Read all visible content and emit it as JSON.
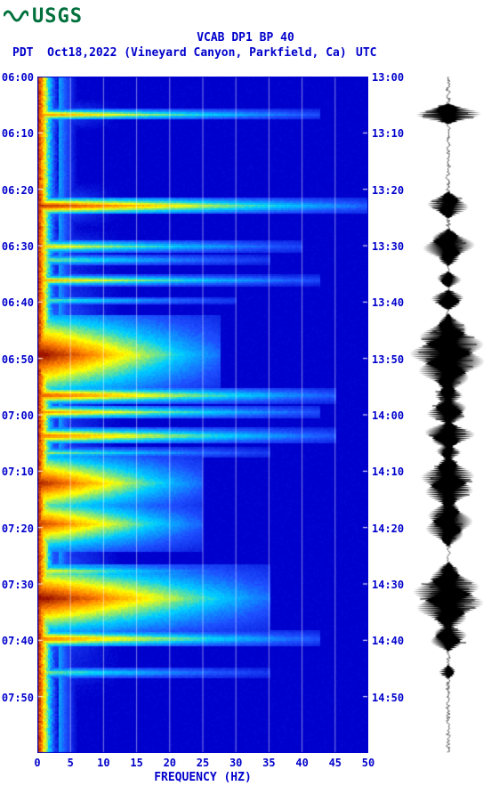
{
  "logo": {
    "text": "USGS"
  },
  "title": "VCAB DP1 BP 40",
  "subtitle_left": "PDT",
  "subtitle_date": "Oct18,2022 (Vineyard Canyon, Parkfield, Ca)",
  "subtitle_right": "UTC",
  "x_axis": {
    "title": "FREQUENCY (HZ)",
    "ticks": [
      0,
      5,
      10,
      15,
      20,
      25,
      30,
      35,
      40,
      45,
      50
    ],
    "lim": [
      0,
      50
    ]
  },
  "left_axis": {
    "ticks": [
      "06:00",
      "06:10",
      "06:20",
      "06:30",
      "06:40",
      "06:50",
      "07:00",
      "07:10",
      "07:20",
      "07:30",
      "07:40",
      "07:50"
    ]
  },
  "right_axis": {
    "ticks": [
      "13:00",
      "13:10",
      "13:20",
      "13:30",
      "13:40",
      "13:50",
      "14:00",
      "14:10",
      "14:20",
      "14:30",
      "14:40",
      "14:50"
    ]
  },
  "colormap": {
    "bg": "#0000cc",
    "low": "#1e50ff",
    "mid": "#00d0ff",
    "high": "#ffff00",
    "hot": "#ff8000",
    "max": "#8b0000"
  },
  "chart": {
    "type": "spectrogram",
    "time_rows": 120,
    "freq_cols": 50,
    "events": [
      {
        "t": 0.055,
        "intensity": 0.8,
        "width": 0.85,
        "thick": 0.008
      },
      {
        "t": 0.19,
        "intensity": 0.95,
        "width": 1.0,
        "thick": 0.012
      },
      {
        "t": 0.25,
        "intensity": 0.7,
        "width": 0.8,
        "thick": 0.01
      },
      {
        "t": 0.27,
        "intensity": 0.6,
        "width": 0.7,
        "thick": 0.008
      },
      {
        "t": 0.3,
        "intensity": 0.75,
        "width": 0.85,
        "thick": 0.008
      },
      {
        "t": 0.33,
        "intensity": 0.6,
        "width": 0.6,
        "thick": 0.006
      },
      {
        "t": 0.41,
        "intensity": 1.0,
        "width": 0.55,
        "thick": 0.06
      },
      {
        "t": 0.47,
        "intensity": 0.9,
        "width": 0.9,
        "thick": 0.012
      },
      {
        "t": 0.495,
        "intensity": 0.8,
        "width": 0.85,
        "thick": 0.01
      },
      {
        "t": 0.53,
        "intensity": 0.85,
        "width": 0.9,
        "thick": 0.012
      },
      {
        "t": 0.555,
        "intensity": 0.6,
        "width": 0.7,
        "thick": 0.008
      },
      {
        "t": 0.6,
        "intensity": 0.95,
        "width": 0.5,
        "thick": 0.045
      },
      {
        "t": 0.66,
        "intensity": 0.9,
        "width": 0.5,
        "thick": 0.04
      },
      {
        "t": 0.73,
        "intensity": 0.7,
        "width": 0.6,
        "thick": 0.01
      },
      {
        "t": 0.77,
        "intensity": 1.0,
        "width": 0.7,
        "thick": 0.05
      },
      {
        "t": 0.83,
        "intensity": 0.85,
        "width": 0.85,
        "thick": 0.012
      },
      {
        "t": 0.88,
        "intensity": 0.6,
        "width": 0.7,
        "thick": 0.008
      }
    ],
    "base_low_freq_width": 0.06
  },
  "seismogram": {
    "events": [
      {
        "t": 0.055,
        "amp": 0.85,
        "dur": 0.015
      },
      {
        "t": 0.19,
        "amp": 0.55,
        "dur": 0.02
      },
      {
        "t": 0.25,
        "amp": 0.7,
        "dur": 0.025
      },
      {
        "t": 0.27,
        "amp": 0.3,
        "dur": 0.01
      },
      {
        "t": 0.3,
        "amp": 0.35,
        "dur": 0.012
      },
      {
        "t": 0.33,
        "amp": 0.5,
        "dur": 0.015
      },
      {
        "t": 0.41,
        "amp": 1.0,
        "dur": 0.06
      },
      {
        "t": 0.47,
        "amp": 0.4,
        "dur": 0.015
      },
      {
        "t": 0.495,
        "amp": 0.6,
        "dur": 0.02
      },
      {
        "t": 0.53,
        "amp": 0.7,
        "dur": 0.02
      },
      {
        "t": 0.555,
        "amp": 0.35,
        "dur": 0.012
      },
      {
        "t": 0.6,
        "amp": 0.75,
        "dur": 0.04
      },
      {
        "t": 0.66,
        "amp": 0.65,
        "dur": 0.035
      },
      {
        "t": 0.73,
        "amp": 0.3,
        "dur": 0.012
      },
      {
        "t": 0.77,
        "amp": 0.95,
        "dur": 0.05
      },
      {
        "t": 0.83,
        "amp": 0.55,
        "dur": 0.02
      },
      {
        "t": 0.88,
        "amp": 0.25,
        "dur": 0.01
      }
    ]
  },
  "styling": {
    "axis_color": "#0000cc",
    "axis_fontsize": 12,
    "title_fontsize": 13,
    "grid_color": "#ffffff",
    "grid_opacity": 0.5,
    "seismogram_color": "#000000"
  }
}
